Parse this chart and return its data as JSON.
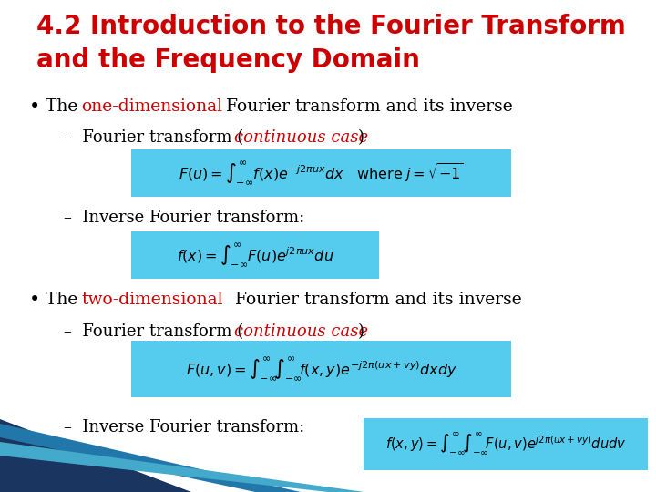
{
  "title_line1": "4.2 Introduction to the Fourier Transform",
  "title_line2": "and the Frequency Domain",
  "title_color": "#cc0000",
  "bg_color": "#ffffff",
  "box_bg": "#55ccee",
  "formula1": "$F(u)=\\int_{-\\infty}^{\\infty}\\! f(x)e^{-j2\\pi ux}dx \\quad \\mathrm{where}\\; j=\\sqrt{-1}$",
  "formula2": "$f(x)=\\int_{-\\infty}^{\\infty}\\! F(u)e^{j2\\pi ux}du$",
  "formula3": "$F(u,v)=\\int_{-\\infty}^{\\infty}\\!\\int_{-\\infty}^{\\infty}\\! f(x,y)e^{-j2\\pi(ux+vy)}dxdy$",
  "formula4": "$f(x,y)=\\int_{-\\infty}^{\\infty}\\!\\int_{-\\infty}^{\\infty}\\! F(u,v)e^{j2\\pi(ux+vy)}dudv$"
}
